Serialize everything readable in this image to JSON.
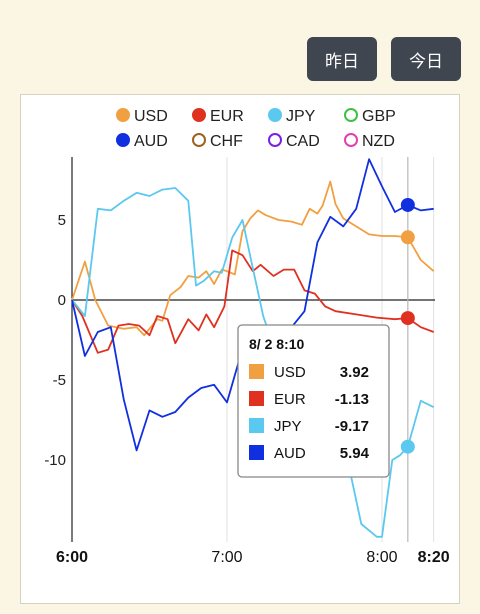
{
  "toolbar": {
    "yesterday_label": "昨日",
    "today_label": "今日"
  },
  "legend": [
    {
      "name": "USD",
      "color": "#f0a040",
      "filled": true
    },
    {
      "name": "EUR",
      "color": "#e03020",
      "filled": true
    },
    {
      "name": "JPY",
      "color": "#5bc8f0",
      "filled": true
    },
    {
      "name": "GBP",
      "color": "#40c040",
      "filled": false
    },
    {
      "name": "AUD",
      "color": "#1030e0",
      "filled": true
    },
    {
      "name": "CHF",
      "color": "#a06020",
      "filled": false
    },
    {
      "name": "CAD",
      "color": "#7a20e0",
      "filled": false
    },
    {
      "name": "NZD",
      "color": "#e040b0",
      "filled": false
    }
  ],
  "chart_data": {
    "type": "line",
    "x_ticks": [
      {
        "t": 0,
        "label": "6:00",
        "bold": true
      },
      {
        "t": 60,
        "label": "7:00",
        "bold": false
      },
      {
        "t": 120,
        "label": "8:00",
        "bold": false
      },
      {
        "t": 140,
        "label": "8:20",
        "bold": true
      }
    ],
    "y_ticks": [
      5,
      0,
      -5,
      -10
    ],
    "xlim": [
      0,
      140
    ],
    "ylim": [
      -15,
      9
    ],
    "marker_time": 130,
    "series": [
      {
        "name": "USD",
        "color": "#f0a040",
        "points": [
          [
            0,
            0
          ],
          [
            5,
            2.4
          ],
          [
            9,
            0
          ],
          [
            14,
            -1.6
          ],
          [
            20,
            -1.8
          ],
          [
            25,
            -1.7
          ],
          [
            28,
            -2.2
          ],
          [
            33,
            -1.2
          ],
          [
            35,
            -1.3
          ],
          [
            38,
            0.3
          ],
          [
            42,
            0.8
          ],
          [
            45,
            1.5
          ],
          [
            49,
            1.4
          ],
          [
            52,
            1.8
          ],
          [
            55,
            1.0
          ],
          [
            58,
            1.9
          ],
          [
            60,
            1.8
          ],
          [
            63,
            1.6
          ],
          [
            66,
            4.3
          ],
          [
            69,
            5.1
          ],
          [
            72,
            5.6
          ],
          [
            75,
            5.3
          ],
          [
            80,
            5.0
          ],
          [
            85,
            4.9
          ],
          [
            89,
            4.7
          ],
          [
            92,
            5.7
          ],
          [
            95,
            5.4
          ],
          [
            97,
            5.9
          ],
          [
            100,
            7.4
          ],
          [
            102,
            6.0
          ],
          [
            105,
            5.1
          ],
          [
            110,
            4.6
          ],
          [
            115,
            4.1
          ],
          [
            120,
            4.0
          ],
          [
            125,
            4.0
          ],
          [
            130,
            3.92
          ],
          [
            135,
            2.5
          ],
          [
            140,
            1.8
          ]
        ]
      },
      {
        "name": "EUR",
        "color": "#e03020",
        "points": [
          [
            0,
            0
          ],
          [
            4,
            -1.0
          ],
          [
            10,
            -3.3
          ],
          [
            14,
            -3.1
          ],
          [
            18,
            -1.6
          ],
          [
            22,
            -1.5
          ],
          [
            26,
            -1.6
          ],
          [
            30,
            -2.2
          ],
          [
            33,
            -1.0
          ],
          [
            37,
            -1.2
          ],
          [
            40,
            -2.7
          ],
          [
            45,
            -1.2
          ],
          [
            49,
            -1.9
          ],
          [
            52,
            -0.9
          ],
          [
            55,
            -1.7
          ],
          [
            59,
            -0.4
          ],
          [
            62,
            3.1
          ],
          [
            66,
            2.8
          ],
          [
            70,
            1.8
          ],
          [
            73,
            2.2
          ],
          [
            78,
            1.5
          ],
          [
            82,
            1.9
          ],
          [
            86,
            1.9
          ],
          [
            90,
            0.6
          ],
          [
            94,
            0.4
          ],
          [
            98,
            -0.4
          ],
          [
            102,
            -0.7
          ],
          [
            110,
            -0.9
          ],
          [
            118,
            -1.1
          ],
          [
            125,
            -1.2
          ],
          [
            130,
            -1.13
          ],
          [
            135,
            -1.7
          ],
          [
            140,
            -2.0
          ]
        ]
      },
      {
        "name": "JPY",
        "color": "#5bc8f0",
        "points": [
          [
            0,
            0
          ],
          [
            5,
            -1.0
          ],
          [
            10,
            5.7
          ],
          [
            15,
            5.6
          ],
          [
            20,
            6.2
          ],
          [
            25,
            6.7
          ],
          [
            30,
            6.5
          ],
          [
            35,
            6.9
          ],
          [
            40,
            7.0
          ],
          [
            45,
            6.2
          ],
          [
            48,
            0.9
          ],
          [
            51,
            1.2
          ],
          [
            55,
            1.8
          ],
          [
            58,
            1.7
          ],
          [
            62,
            3.9
          ],
          [
            66,
            5.0
          ],
          [
            70,
            2.0
          ],
          [
            74,
            -1.0
          ],
          [
            78,
            -2.9
          ],
          [
            82,
            -3.8
          ],
          [
            86,
            -4.2
          ],
          [
            90,
            -4.1
          ],
          [
            93,
            -3.3
          ],
          [
            96,
            -4.8
          ],
          [
            100,
            -6.2
          ],
          [
            104,
            -9.1
          ],
          [
            108,
            -11.0
          ],
          [
            112,
            -14.0
          ],
          [
            118,
            -14.8
          ],
          [
            120,
            -14.8
          ],
          [
            124,
            -10.0
          ],
          [
            127,
            -9.7
          ],
          [
            130,
            -9.17
          ],
          [
            135,
            -6.3
          ],
          [
            140,
            -6.7
          ]
        ]
      },
      {
        "name": "AUD",
        "color": "#1030e0",
        "points": [
          [
            0,
            0
          ],
          [
            5,
            -3.5
          ],
          [
            10,
            -2.0
          ],
          [
            15,
            -1.7
          ],
          [
            20,
            -6.2
          ],
          [
            25,
            -9.4
          ],
          [
            30,
            -6.9
          ],
          [
            35,
            -7.3
          ],
          [
            40,
            -7.0
          ],
          [
            45,
            -6.1
          ],
          [
            50,
            -5.5
          ],
          [
            55,
            -5.3
          ],
          [
            60,
            -6.4
          ],
          [
            65,
            -3.6
          ],
          [
            70,
            -3.1
          ],
          [
            75,
            -2.1
          ],
          [
            80,
            -2.0
          ],
          [
            85,
            -1.7
          ],
          [
            90,
            -0.7
          ],
          [
            95,
            3.6
          ],
          [
            100,
            5.2
          ],
          [
            105,
            4.6
          ],
          [
            110,
            5.7
          ],
          [
            115,
            8.8
          ],
          [
            120,
            7.1
          ],
          [
            125,
            5.5
          ],
          [
            130,
            5.94
          ],
          [
            135,
            5.6
          ],
          [
            140,
            5.7
          ]
        ]
      }
    ]
  },
  "tooltip": {
    "title": "8/ 2 8:10",
    "rows": [
      {
        "name": "USD",
        "value": "3.92",
        "color": "#f0a040"
      },
      {
        "name": "EUR",
        "value": "-1.13",
        "color": "#e03020"
      },
      {
        "name": "JPY",
        "value": "-9.17",
        "color": "#5bc8f0"
      },
      {
        "name": "AUD",
        "value": "5.94",
        "color": "#1030e0"
      }
    ]
  }
}
